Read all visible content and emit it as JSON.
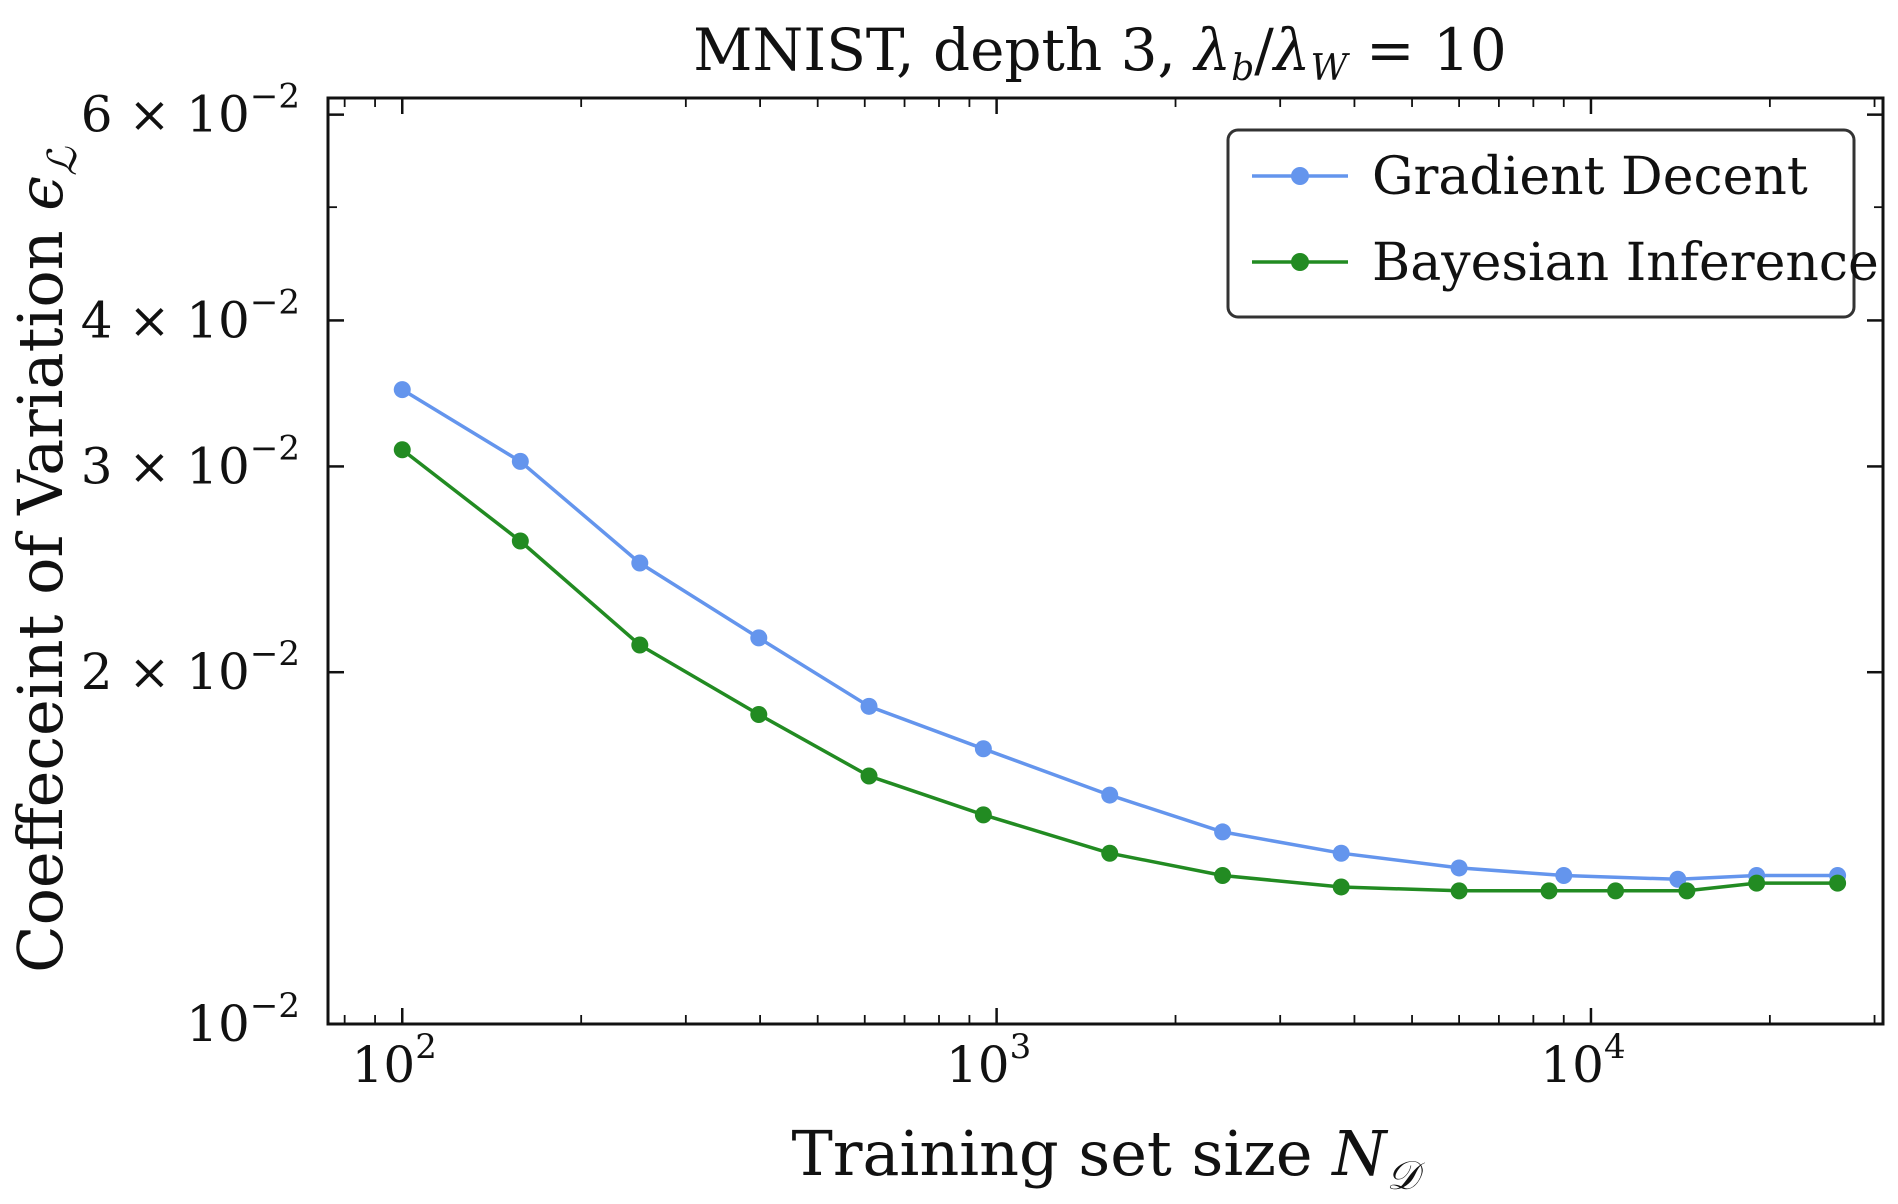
{
  "chart_data": {
    "type": "line",
    "title": "MNIST, depth 3, λb/λW = 10",
    "title_parts": {
      "prefix": "MNIST, depth 3, ",
      "lambda": "λ",
      "sub_b": "b",
      "slash": "/",
      "sub_W": "W",
      "suffix": " = 10"
    },
    "xlabel": "Training set size N𝒟",
    "xlabel_parts": {
      "text": "Training set size ",
      "symbol": "N",
      "sub": "𝒟"
    },
    "ylabel": "Coeffeceint of Variation ϵℒ",
    "ylabel_parts": {
      "text": "Coeffeceint of Variation ",
      "symbol": "ϵ",
      "sub": "ℒ"
    },
    "x_scale": "log",
    "y_scale": "log",
    "xlim": [
      75,
      31000
    ],
    "ylim": [
      0.01,
      0.062
    ],
    "x_ticks": [
      {
        "value": 100,
        "base": "10",
        "exp": "2"
      },
      {
        "value": 1000,
        "base": "10",
        "exp": "3"
      },
      {
        "value": 10000,
        "base": "10",
        "exp": "4"
      }
    ],
    "y_ticks": [
      {
        "value": 0.01,
        "mant": "",
        "base": "10",
        "exp": "−2"
      },
      {
        "value": 0.02,
        "mant": "2 × ",
        "base": "10",
        "exp": "−2"
      },
      {
        "value": 0.03,
        "mant": "3 × ",
        "base": "10",
        "exp": "−2"
      },
      {
        "value": 0.04,
        "mant": "4 × ",
        "base": "10",
        "exp": "−2"
      },
      {
        "value": 0.06,
        "mant": "6 × ",
        "base": "10",
        "exp": "−2"
      }
    ],
    "legend_location": "upper right",
    "series": [
      {
        "name": "Gradient Decent",
        "color": "#6495ED",
        "x": [
          100,
          158,
          251,
          398,
          631,
          1000,
          1585,
          2512,
          3981,
          6310,
          10000,
          15849,
          20000,
          30000
        ],
        "x_actual": [
          100,
          158,
          251,
          398,
          610,
          950,
          1550,
          2400,
          3800,
          6000,
          9000,
          14000,
          19000,
          26000
        ],
        "y": [
          0.0349,
          0.0303,
          0.0248,
          0.0214,
          0.0187,
          0.0172,
          0.0157,
          0.0146,
          0.014,
          0.0136,
          0.0134,
          0.0133,
          0.0134,
          0.0134
        ]
      },
      {
        "name": "Bayesian Inference",
        "color": "#228B22",
        "x_actual": [
          100,
          158,
          251,
          398,
          610,
          950,
          1550,
          2400,
          3800,
          6000,
          8500,
          11000,
          14500,
          19000,
          26000
        ],
        "y": [
          0.031,
          0.0259,
          0.0211,
          0.0184,
          0.0163,
          0.0151,
          0.014,
          0.0134,
          0.0131,
          0.013,
          0.013,
          0.013,
          0.013,
          0.0132,
          0.0132
        ]
      }
    ]
  }
}
